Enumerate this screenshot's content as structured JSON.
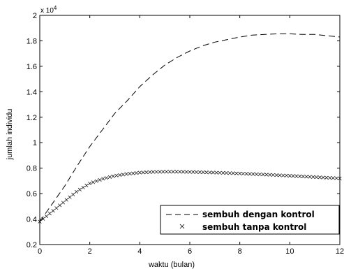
{
  "chart_data": {
    "type": "line",
    "xlabel": "waktu (bulan)",
    "ylabel": "jumlah individu",
    "y_exponent_label": "x 10",
    "y_exponent_power": "4",
    "xlim": [
      0,
      12
    ],
    "ylim": [
      0.2,
      2
    ],
    "x_ticks": [
      0,
      2,
      4,
      6,
      8,
      10,
      12
    ],
    "y_ticks": [
      0.2,
      0.4,
      0.6,
      0.8,
      1,
      1.2,
      1.4,
      1.6,
      1.8,
      2
    ],
    "x_tick_labels": [
      "0",
      "2",
      "4",
      "6",
      "8",
      "10",
      "12"
    ],
    "y_tick_labels": [
      "0.2",
      "0.4",
      "0.6",
      "0.8",
      "1",
      "1.2",
      "1.4",
      "1.6",
      "1.8",
      "2"
    ],
    "grid": false,
    "legend_position": "bottom-right",
    "series": [
      {
        "name": "sembuh dengan kontrol",
        "style": "dashed",
        "color": "#000000",
        "x": [
          0,
          0.5,
          1,
          1.5,
          2,
          2.5,
          3,
          3.5,
          4,
          4.5,
          5,
          5.5,
          6,
          6.5,
          7,
          7.5,
          8,
          8.5,
          9,
          9.5,
          10,
          10.5,
          11,
          11.5,
          12
        ],
        "y": [
          0.38,
          0.52,
          0.66,
          0.82,
          0.97,
          1.1,
          1.23,
          1.33,
          1.44,
          1.53,
          1.61,
          1.67,
          1.72,
          1.76,
          1.79,
          1.81,
          1.83,
          1.845,
          1.85,
          1.855,
          1.855,
          1.85,
          1.85,
          1.84,
          1.83
        ]
      },
      {
        "name": "sembuh tanpa kontrol",
        "style": "x-markers",
        "color": "#000000",
        "x": [
          0,
          0.5,
          1,
          1.5,
          2,
          2.5,
          3,
          3.5,
          4,
          4.5,
          5,
          5.5,
          6,
          6.5,
          7,
          7.5,
          8,
          8.5,
          9,
          9.5,
          10,
          10.5,
          11,
          11.5,
          12
        ],
        "y": [
          0.38,
          0.46,
          0.54,
          0.62,
          0.68,
          0.715,
          0.74,
          0.755,
          0.765,
          0.77,
          0.772,
          0.772,
          0.77,
          0.768,
          0.765,
          0.762,
          0.758,
          0.754,
          0.75,
          0.745,
          0.74,
          0.735,
          0.73,
          0.725,
          0.72
        ]
      }
    ]
  }
}
